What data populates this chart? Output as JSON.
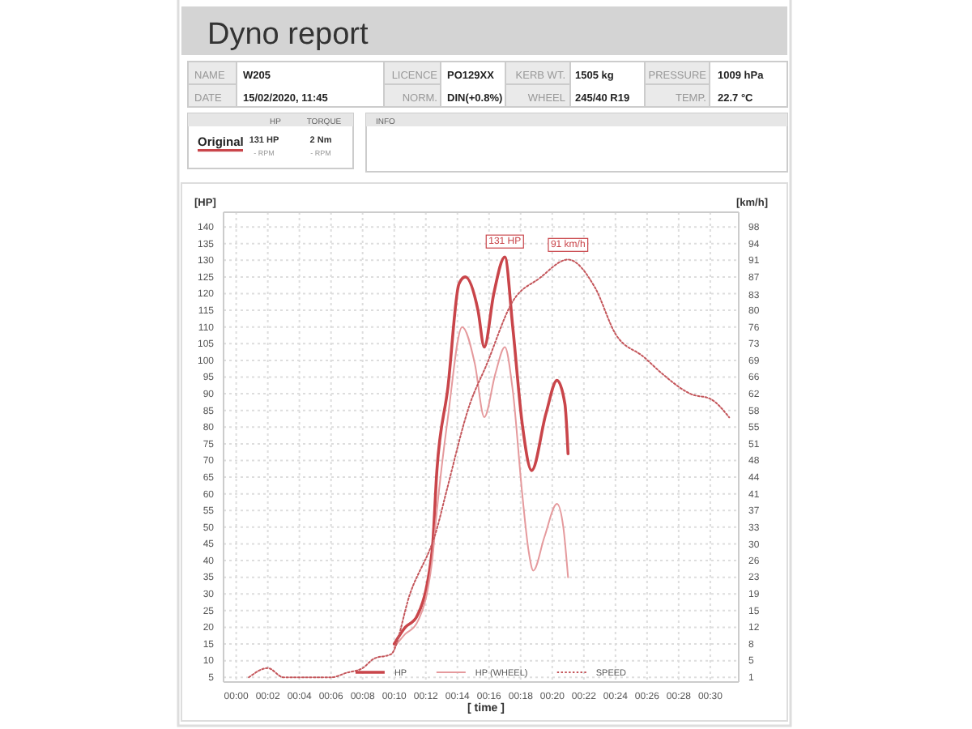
{
  "chart_data": [
    {
      "type": "other",
      "title": "Dyno report",
      "annotations": [
        "NAME",
        "W205",
        "LICENCE",
        "PO129XX",
        "KERB WT.",
        "1505 kg",
        "PRESSURE",
        "1009 hPa",
        "DATE",
        "15/02/2020, 11:45",
        "NORM.",
        "DIN(+0.8%)",
        "WHEEL",
        "245/40 R19",
        "TEMP.",
        "22.7 °C",
        "HP",
        "TORQUE",
        "Original",
        "131 HP",
        "- RPM",
        "2 Nm",
        "- RPM",
        "INFO"
      ]
    },
    {
      "type": "line",
      "ylabel": "[HP]",
      "y2label": "[km/h]",
      "xlabel": "[ time ]",
      "xlim": [
        -0.8,
        31.8
      ],
      "ylim": [
        3.6,
        144.4
      ],
      "y2lim": [
        0,
        101.2
      ],
      "xticks": [
        {
          "value": 0,
          "label": "00:00"
        },
        {
          "value": 2,
          "label": "00:02"
        },
        {
          "value": 4,
          "label": "00:04"
        },
        {
          "value": 6,
          "label": "00:06"
        },
        {
          "value": 8,
          "label": "00:08"
        },
        {
          "value": 10,
          "label": "00:10"
        },
        {
          "value": 12,
          "label": "00:12"
        },
        {
          "value": 14,
          "label": "00:14"
        },
        {
          "value": 16,
          "label": "00:16"
        },
        {
          "value": 18,
          "label": "00:18"
        },
        {
          "value": 20,
          "label": "00:20"
        },
        {
          "value": 22,
          "label": "00:22"
        },
        {
          "value": 24,
          "label": "00:24"
        },
        {
          "value": 26,
          "label": "00:26"
        },
        {
          "value": 28,
          "label": "00:28"
        },
        {
          "value": 30,
          "label": "00:30"
        }
      ],
      "yticks": [
        5,
        10,
        15,
        20,
        25,
        30,
        35,
        40,
        45,
        50,
        55,
        60,
        65,
        70,
        75,
        80,
        85,
        90,
        95,
        100,
        105,
        110,
        115,
        120,
        125,
        130,
        135,
        140
      ],
      "y2ticks": [
        {
          "value": 1,
          "label": "1"
        },
        {
          "value": 4.6,
          "label": "5"
        },
        {
          "value": 8.2,
          "label": "8"
        },
        {
          "value": 11.8,
          "label": "12"
        },
        {
          "value": 15.4,
          "label": "15"
        },
        {
          "value": 19,
          "label": "19"
        },
        {
          "value": 22.6,
          "label": "23"
        },
        {
          "value": 26.1,
          "label": "26"
        },
        {
          "value": 29.7,
          "label": "30"
        },
        {
          "value": 33.3,
          "label": "33"
        },
        {
          "value": 36.9,
          "label": "37"
        },
        {
          "value": 40.5,
          "label": "41"
        },
        {
          "value": 44.1,
          "label": "44"
        },
        {
          "value": 47.7,
          "label": "48"
        },
        {
          "value": 51.3,
          "label": "51"
        },
        {
          "value": 54.9,
          "label": "55"
        },
        {
          "value": 58.5,
          "label": "58"
        },
        {
          "value": 62.1,
          "label": "62"
        },
        {
          "value": 65.7,
          "label": "66"
        },
        {
          "value": 69.3,
          "label": "69"
        },
        {
          "value": 72.9,
          "label": "73"
        },
        {
          "value": 76.4,
          "label": "76"
        },
        {
          "value": 80,
          "label": "80"
        },
        {
          "value": 83.4,
          "label": "83"
        },
        {
          "value": 87.2,
          "label": "87"
        },
        {
          "value": 90.8,
          "label": "91"
        },
        {
          "value": 94.4,
          "label": "94"
        },
        {
          "value": 98,
          "label": "98"
        }
      ],
      "grid": true,
      "legend": "bottom",
      "marker": "none",
      "series": [
        {
          "name": "HP",
          "color": "#c9454a",
          "line_style": "solid",
          "x": [
            10.0,
            10.7,
            11.4,
            12.4,
            12.7,
            13.4,
            14.1,
            14.5,
            15.3,
            15.7,
            16.3,
            17.0,
            17.5,
            18.1,
            18.7,
            19.6,
            20.3,
            20.8,
            21.0
          ],
          "values": [
            15,
            20,
            23,
            43,
            67,
            92,
            123,
            125,
            115,
            104,
            120,
            131,
            110,
            81,
            67,
            84,
            94,
            87,
            72
          ]
        },
        {
          "name": "HP (WHEEL)",
          "color": "#e59a9d",
          "line_style": "solid",
          "x": [
            10.0,
            10.7,
            11.4,
            12.4,
            12.7,
            13.4,
            14.3,
            15.1,
            15.7,
            16.4,
            17.0,
            17.5,
            18.1,
            18.5,
            18.8,
            19.5,
            20.3,
            20.7,
            21.0
          ],
          "values": [
            14,
            18,
            21,
            40,
            55,
            83,
            110,
            99,
            83,
            96,
            104,
            91,
            60,
            43,
            37,
            47,
            57,
            50,
            35
          ]
        },
        {
          "name": "SPEED",
          "color": "#c4565b",
          "line_style": "dotted",
          "axis": "y2",
          "x": [
            0.8,
            2.0,
            3.0,
            6.0,
            7.0,
            8.0,
            8.7,
            9.8,
            11.0,
            12.7,
            13.3,
            14.8,
            15.8,
            17.5,
            19.2,
            21.0,
            22.7,
            24.0,
            25.8,
            27.1,
            28.8,
            30.0,
            31.2
          ],
          "values": [
            1,
            3,
            1,
            1,
            2,
            3,
            5,
            6,
            19,
            33,
            41,
            60,
            68,
            82,
            87,
            91,
            85,
            75,
            70,
            66,
            62,
            61,
            57
          ]
        }
      ],
      "annotations": [
        {
          "text": "131 HP",
          "x": 17.0,
          "y": 131
        },
        {
          "text": "91 km/h",
          "x": 21.0,
          "y": 130
        }
      ]
    }
  ]
}
